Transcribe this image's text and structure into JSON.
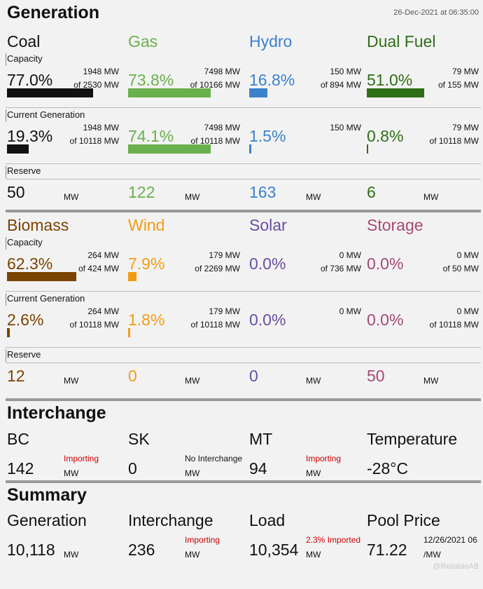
{
  "colors": {
    "coal": "#111111",
    "gas": "#6ab04c",
    "hydro": "#3b82cc",
    "dual": "#2e6e17",
    "biomass": "#7a4300",
    "wind": "#f39c12",
    "solar": "#6a4ea0",
    "storage": "#a44a72",
    "import": "#cc0000"
  },
  "header": {
    "title": "Generation",
    "timestamp": "26-Dec-2021 at 06:35:00"
  },
  "row_labels": {
    "capacity": "Capacity",
    "current": "Current Generation",
    "reserve": "Reserve"
  },
  "unit": "MW",
  "generation_top": [
    {
      "name": "Coal",
      "cap_pct": "77.0%",
      "cap_mw": "1948 MW",
      "cap_of": "of 2530 MW",
      "cap_fraction": 0.77,
      "cur_pct": "19.3%",
      "cur_mw": "1948 MW",
      "cur_of": "of 10118 MW",
      "cur_fraction": 0.193,
      "reserve": "50"
    },
    {
      "name": "Gas",
      "cap_pct": "73.8%",
      "cap_mw": "7498 MW",
      "cap_of": "of 10166 MW",
      "cap_fraction": 0.738,
      "cur_pct": "74.1%",
      "cur_mw": "7498 MW",
      "cur_of": "of 10118 MW",
      "cur_fraction": 0.741,
      "reserve": "122"
    },
    {
      "name": "Hydro",
      "cap_pct": "16.8%",
      "cap_mw": "150 MW",
      "cap_of": "of 894 MW",
      "cap_fraction": 0.168,
      "cur_pct": "1.5%",
      "cur_mw": "150 MW",
      "cur_of": "",
      "cur_fraction": 0.015,
      "reserve": "163"
    },
    {
      "name": "Dual Fuel",
      "cap_pct": "51.0%",
      "cap_mw": "79 MW",
      "cap_of": "of 155 MW",
      "cap_fraction": 0.51,
      "cur_pct": "0.8%",
      "cur_mw": "79 MW",
      "cur_of": "of 10118 MW",
      "cur_fraction": 0.008,
      "reserve": "6"
    }
  ],
  "generation_bottom": [
    {
      "name": "Biomass",
      "cap_pct": "62.3%",
      "cap_mw": "264 MW",
      "cap_of": "of 424 MW",
      "cap_fraction": 0.623,
      "cur_pct": "2.6%",
      "cur_mw": "264 MW",
      "cur_of": "of 10118 MW",
      "cur_fraction": 0.026,
      "reserve": "12"
    },
    {
      "name": "Wind",
      "cap_pct": "7.9%",
      "cap_mw": "179 MW",
      "cap_of": "of 2269 MW",
      "cap_fraction": 0.079,
      "cur_pct": "1.8%",
      "cur_mw": "179 MW",
      "cur_of": "of 10118 MW",
      "cur_fraction": 0.018,
      "reserve": "0"
    },
    {
      "name": "Solar",
      "cap_pct": "0.0%",
      "cap_mw": "0 MW",
      "cap_of": "of 736 MW",
      "cap_fraction": 0.0,
      "cur_pct": "0.0%",
      "cur_mw": "0 MW",
      "cur_of": "",
      "cur_fraction": 0.0,
      "reserve": "0"
    },
    {
      "name": "Storage",
      "cap_pct": "0.0%",
      "cap_mw": "0 MW",
      "cap_of": "of 50 MW",
      "cap_fraction": 0.0,
      "cur_pct": "0.0%",
      "cur_mw": "0 MW",
      "cur_of": "of 10118 MW",
      "cur_fraction": 0.0,
      "reserve": "50"
    }
  ],
  "interchange": {
    "title": "Interchange",
    "items": [
      {
        "name": "BC",
        "value": "142",
        "status": "Importing"
      },
      {
        "name": "SK",
        "value": "0",
        "status": "No Interchange"
      },
      {
        "name": "MT",
        "value": "94",
        "status": "Importing"
      }
    ],
    "temperature": {
      "label": "Temperature",
      "value": "-28°C"
    }
  },
  "summary": {
    "title": "Summary",
    "generation": {
      "label": "Generation",
      "value": "10,118"
    },
    "interchange": {
      "label": "Interchange",
      "value": "236",
      "status": "Importing"
    },
    "load": {
      "label": "Load",
      "value": "10,354",
      "status": "2.3% Imported"
    },
    "pool_price": {
      "label": "Pool Price",
      "value": "71.22",
      "date": "12/26/2021 06",
      "unit": "/MW"
    },
    "credit": "@ReliableAB"
  }
}
